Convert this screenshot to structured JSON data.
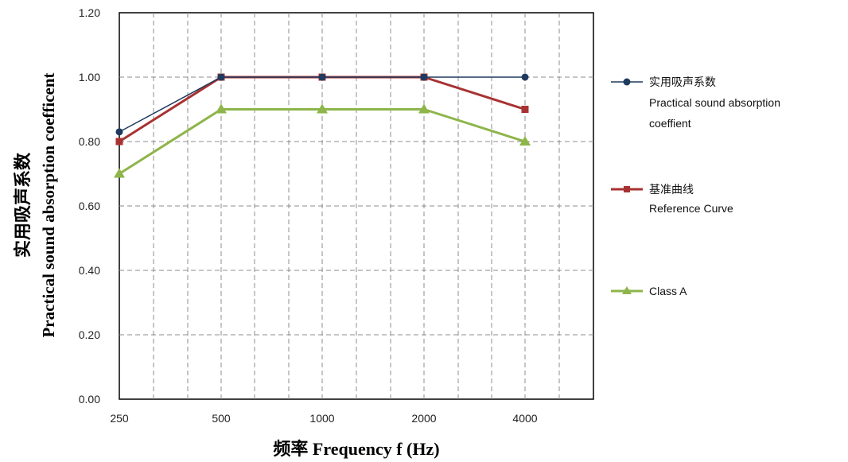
{
  "chart_data": {
    "type": "line",
    "categories": [
      "250",
      "500",
      "1000",
      "2000",
      "4000"
    ],
    "xlabel": "频率 Frequency f (Hz)",
    "ylabel_line1": "实用吸声系数",
    "ylabel_line2": "Practical sound absorption coefficent",
    "ylim": [
      0,
      1.2
    ],
    "yticks": [
      "0.00",
      "0.20",
      "0.40",
      "0.60",
      "0.80",
      "1.00",
      "1.20"
    ],
    "grid": true,
    "legend_position": "right",
    "series": [
      {
        "name_line1": "实用吸声系数",
        "name_line2": "Practical sound absorption",
        "name_line3": "coeffient",
        "values": [
          0.83,
          1.0,
          1.0,
          1.0,
          1.0
        ],
        "color": "#1f3a5f",
        "marker": "circle"
      },
      {
        "name_line1": "基准曲线",
        "name_line2": "Reference Curve",
        "values": [
          0.8,
          1.0,
          1.0,
          1.0,
          0.9
        ],
        "color": "#a83232",
        "marker": "square"
      },
      {
        "name_line1": "Class A",
        "values": [
          0.7,
          0.9,
          0.9,
          0.9,
          0.8
        ],
        "color": "#8db54a",
        "marker": "triangle"
      }
    ]
  }
}
